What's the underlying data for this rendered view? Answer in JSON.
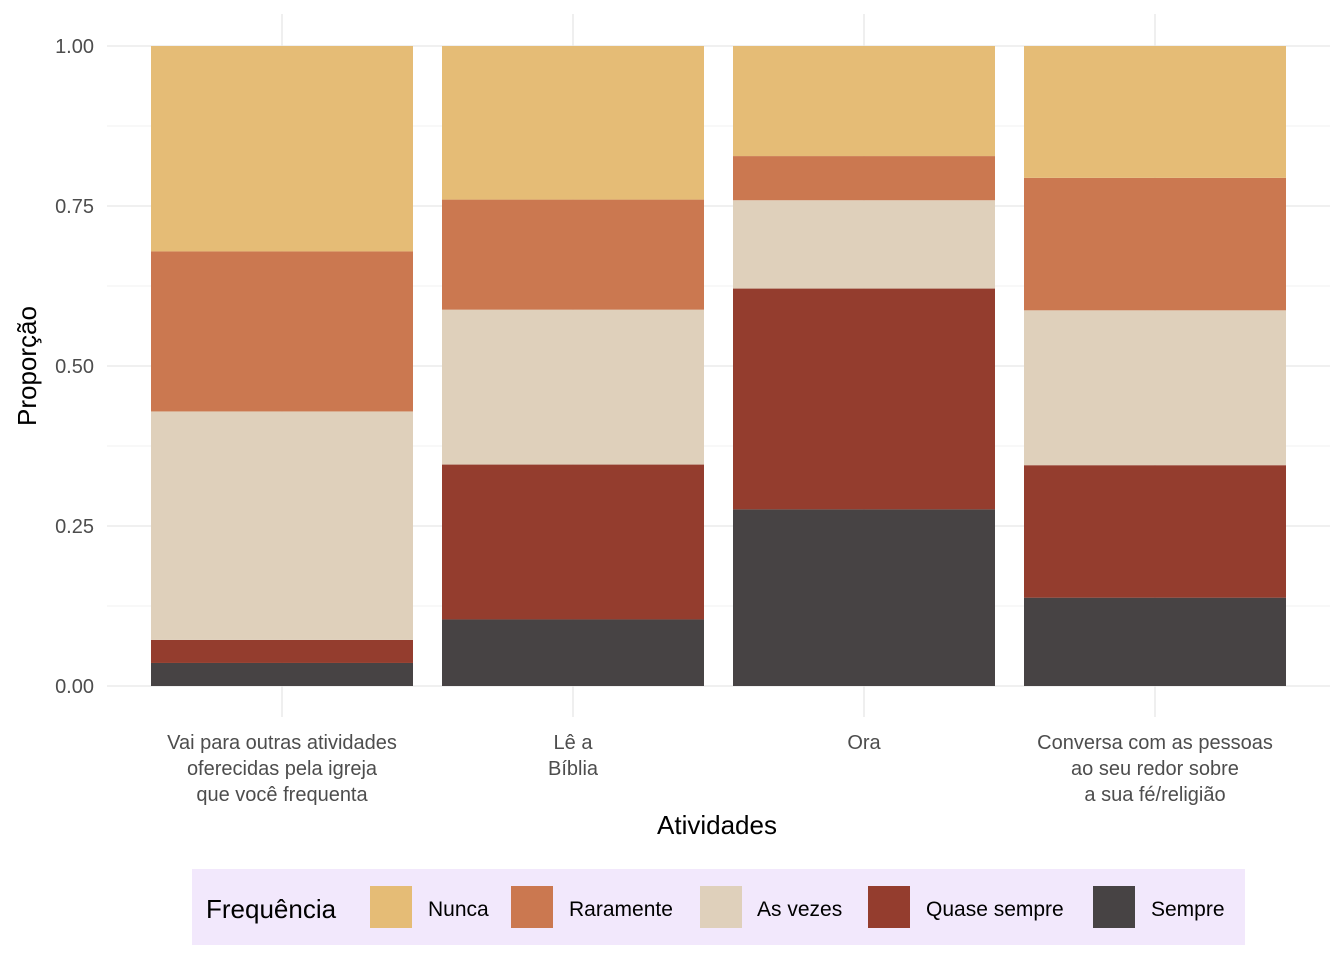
{
  "chart_data": {
    "type": "bar",
    "stacked": true,
    "xlabel": "Atividades",
    "ylabel": "Proporção",
    "ylim": [
      0,
      1
    ],
    "yticks": [
      "0.00",
      "0.25",
      "0.50",
      "0.75",
      "1.00"
    ],
    "categories": [
      [
        "Vai para outras atividades",
        "oferecidas pela igreja",
        "que você frequenta"
      ],
      [
        "Lê a",
        "Bíblia"
      ],
      [
        "Ora"
      ],
      [
        "Conversa com as pessoas",
        "ao seu redor sobre",
        "a sua fé/religião"
      ]
    ],
    "series": [
      {
        "name": "Sempre",
        "color": "#474344",
        "values": [
          0.036,
          0.104,
          0.276,
          0.138
        ]
      },
      {
        "name": "Quase sempre",
        "color": "#943d2e",
        "values": [
          0.036,
          0.242,
          0.345,
          0.207
        ]
      },
      {
        "name": "As vezes",
        "color": "#dfd0bb",
        "values": [
          0.357,
          0.242,
          0.138,
          0.242
        ]
      },
      {
        "name": "Raramente",
        "color": "#cb7850",
        "values": [
          0.25,
          0.172,
          0.069,
          0.207
        ]
      },
      {
        "name": "Nunca",
        "color": "#e5bc76",
        "values": [
          0.321,
          0.24,
          0.172,
          0.206
        ]
      }
    ],
    "grid": true,
    "legend": {
      "title": "Frequência",
      "position": "bottom",
      "background": "#f2e8fc",
      "order": [
        "Nunca",
        "Raramente",
        "As vezes",
        "Quase sempre",
        "Sempre"
      ]
    }
  }
}
